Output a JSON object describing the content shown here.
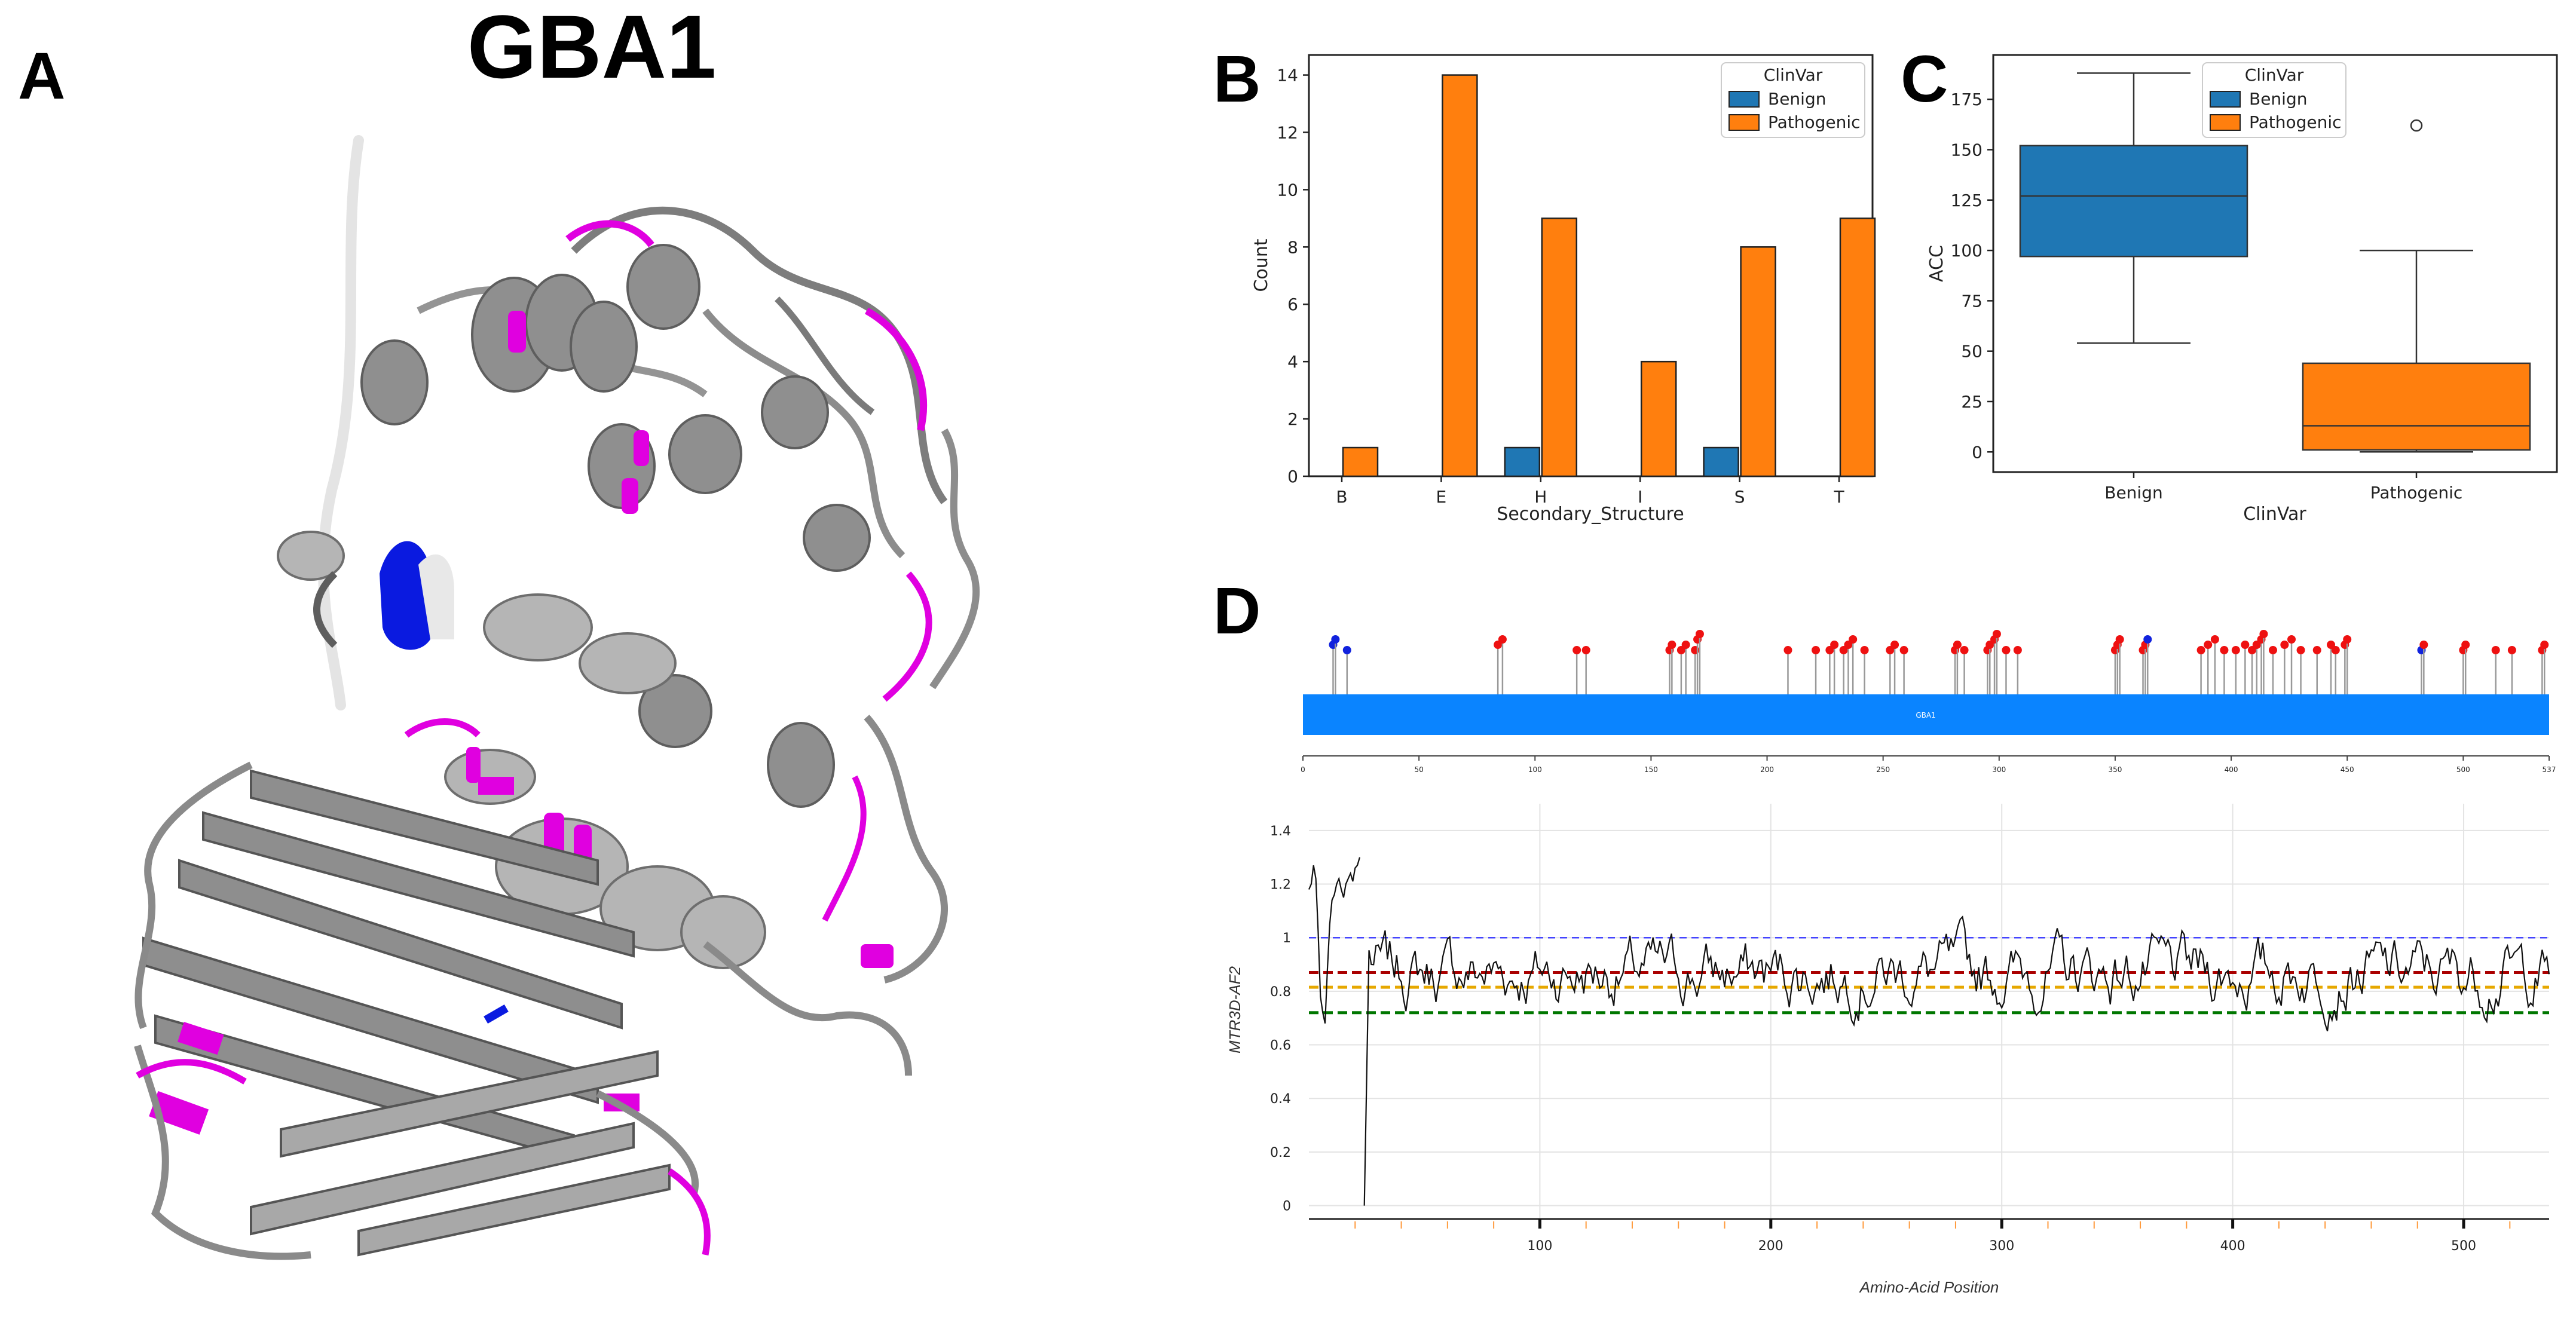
{
  "figure": {
    "panel_labels": {
      "a": "A",
      "b": "B",
      "c": "C",
      "d": "D"
    },
    "structure_title": "GBA1"
  },
  "colors": {
    "benign": "#1f77b4",
    "pathogenic": "#ff7f0e",
    "structure_gray": "#8a8a8a",
    "structure_highlight": "#e000e0",
    "structure_blue": "#0a1ae0",
    "lollipop_pathogenic": "#ee1111",
    "lollipop_benign": "#1122dd",
    "domain_bar": "#0a84ff",
    "ref_blue": "#4444ff",
    "ref_red": "#aa0000",
    "ref_yellow": "#e6a800",
    "ref_green": "#007700"
  },
  "chart_data": [
    {
      "id": "B",
      "type": "bar",
      "title": "",
      "xlabel": "Secondary_Structure",
      "ylabel": "Count",
      "categories": [
        "B",
        "E",
        "H",
        "I",
        "S",
        "T"
      ],
      "series": [
        {
          "name": "Benign",
          "values": [
            0,
            0,
            1,
            0,
            1,
            0
          ]
        },
        {
          "name": "Pathogenic",
          "values": [
            1,
            14,
            9,
            4,
            8,
            9
          ]
        }
      ],
      "ylim": [
        0,
        14.7
      ],
      "yticks": [
        "0",
        "2",
        "4",
        "6",
        "8",
        "10",
        "12",
        "14"
      ],
      "yticks_values": [
        0,
        2,
        4,
        6,
        8,
        10,
        12,
        14
      ],
      "legend": {
        "title": "ClinVar",
        "entries": [
          "Benign",
          "Pathogenic"
        ],
        "position": "top-right"
      }
    },
    {
      "id": "C",
      "type": "box",
      "title": "",
      "xlabel": "ClinVar",
      "ylabel": "ACC",
      "categories": [
        "Benign",
        "Pathogenic"
      ],
      "boxes": [
        {
          "name": "Benign",
          "whisker_low": 54,
          "q1": 97,
          "median": 127,
          "q3": 152,
          "whisker_high": 188,
          "outliers": []
        },
        {
          "name": "Pathogenic",
          "whisker_low": 0,
          "q1": 1,
          "median": 13,
          "q3": 44,
          "whisker_high": 100,
          "outliers": [
            162
          ]
        }
      ],
      "ylim": [
        -10,
        197
      ],
      "yticks": [
        "0",
        "25",
        "50",
        "75",
        "100",
        "125",
        "150",
        "175"
      ],
      "yticks_values": [
        0,
        25,
        50,
        75,
        100,
        125,
        150,
        175
      ],
      "legend": {
        "title": "ClinVar",
        "entries": [
          "Benign",
          "Pathogenic"
        ],
        "position": "top-right"
      }
    },
    {
      "id": "D-lollipop",
      "type": "lollipop",
      "protein_length": 537,
      "domain_label": "GBA1",
      "ticks": [
        "0",
        "50",
        "100",
        "150",
        "200",
        "250",
        "300",
        "350",
        "400",
        "450",
        "500",
        "537"
      ],
      "tick_values": [
        0,
        50,
        100,
        150,
        200,
        250,
        300,
        350,
        400,
        450,
        500,
        537
      ],
      "variants": [
        {
          "pos": 13,
          "n": 2,
          "class": "Benign"
        },
        {
          "pos": 14,
          "n": 3,
          "class": "Benign"
        },
        {
          "pos": 19,
          "n": 1,
          "class": "Benign"
        },
        {
          "pos": 84,
          "n": 2,
          "class": "Pathogenic"
        },
        {
          "pos": 86,
          "n": 3,
          "class": "Pathogenic"
        },
        {
          "pos": 118,
          "n": 1,
          "class": "Pathogenic"
        },
        {
          "pos": 122,
          "n": 1,
          "class": "Pathogenic"
        },
        {
          "pos": 158,
          "n": 1,
          "class": "Pathogenic"
        },
        {
          "pos": 159,
          "n": 2,
          "class": "Pathogenic"
        },
        {
          "pos": 163,
          "n": 1,
          "class": "Pathogenic"
        },
        {
          "pos": 165,
          "n": 2,
          "class": "Pathogenic"
        },
        {
          "pos": 169,
          "n": 1,
          "class": "Pathogenic"
        },
        {
          "pos": 170,
          "n": 3,
          "class": "Pathogenic"
        },
        {
          "pos": 171,
          "n": 4,
          "class": "Pathogenic"
        },
        {
          "pos": 209,
          "n": 1,
          "class": "Pathogenic"
        },
        {
          "pos": 221,
          "n": 1,
          "class": "Pathogenic"
        },
        {
          "pos": 227,
          "n": 1,
          "class": "Pathogenic"
        },
        {
          "pos": 229,
          "n": 2,
          "class": "Pathogenic"
        },
        {
          "pos": 233,
          "n": 1,
          "class": "Pathogenic"
        },
        {
          "pos": 235,
          "n": 2,
          "class": "Pathogenic"
        },
        {
          "pos": 237,
          "n": 3,
          "class": "Pathogenic"
        },
        {
          "pos": 242,
          "n": 1,
          "class": "Pathogenic"
        },
        {
          "pos": 253,
          "n": 1,
          "class": "Pathogenic"
        },
        {
          "pos": 255,
          "n": 2,
          "class": "Pathogenic"
        },
        {
          "pos": 259,
          "n": 1,
          "class": "Pathogenic"
        },
        {
          "pos": 281,
          "n": 1,
          "class": "Pathogenic"
        },
        {
          "pos": 282,
          "n": 2,
          "class": "Pathogenic"
        },
        {
          "pos": 285,
          "n": 1,
          "class": "Pathogenic"
        },
        {
          "pos": 295,
          "n": 1,
          "class": "Pathogenic"
        },
        {
          "pos": 296,
          "n": 2,
          "class": "Pathogenic"
        },
        {
          "pos": 298,
          "n": 3,
          "class": "Pathogenic"
        },
        {
          "pos": 299,
          "n": 4,
          "class": "Pathogenic"
        },
        {
          "pos": 303,
          "n": 1,
          "class": "Pathogenic"
        },
        {
          "pos": 308,
          "n": 1,
          "class": "Pathogenic"
        },
        {
          "pos": 350,
          "n": 1,
          "class": "Pathogenic"
        },
        {
          "pos": 351,
          "n": 2,
          "class": "Pathogenic"
        },
        {
          "pos": 352,
          "n": 3,
          "class": "Pathogenic"
        },
        {
          "pos": 362,
          "n": 1,
          "class": "Pathogenic"
        },
        {
          "pos": 363,
          "n": 2,
          "class": "Pathogenic"
        },
        {
          "pos": 364,
          "n": 3,
          "class": "Benign"
        },
        {
          "pos": 387,
          "n": 1,
          "class": "Pathogenic"
        },
        {
          "pos": 390,
          "n": 2,
          "class": "Pathogenic"
        },
        {
          "pos": 393,
          "n": 3,
          "class": "Pathogenic"
        },
        {
          "pos": 397,
          "n": 1,
          "class": "Pathogenic"
        },
        {
          "pos": 402,
          "n": 1,
          "class": "Pathogenic"
        },
        {
          "pos": 406,
          "n": 2,
          "class": "Pathogenic"
        },
        {
          "pos": 409,
          "n": 1,
          "class": "Pathogenic"
        },
        {
          "pos": 411,
          "n": 2,
          "class": "Pathogenic"
        },
        {
          "pos": 413,
          "n": 3,
          "class": "Pathogenic"
        },
        {
          "pos": 414,
          "n": 4,
          "class": "Pathogenic"
        },
        {
          "pos": 418,
          "n": 1,
          "class": "Pathogenic"
        },
        {
          "pos": 423,
          "n": 2,
          "class": "Pathogenic"
        },
        {
          "pos": 426,
          "n": 3,
          "class": "Pathogenic"
        },
        {
          "pos": 430,
          "n": 1,
          "class": "Pathogenic"
        },
        {
          "pos": 437,
          "n": 1,
          "class": "Pathogenic"
        },
        {
          "pos": 443,
          "n": 2,
          "class": "Pathogenic"
        },
        {
          "pos": 445,
          "n": 1,
          "class": "Pathogenic"
        },
        {
          "pos": 449,
          "n": 2,
          "class": "Pathogenic"
        },
        {
          "pos": 450,
          "n": 3,
          "class": "Pathogenic"
        },
        {
          "pos": 482,
          "n": 1,
          "class": "Benign"
        },
        {
          "pos": 483,
          "n": 2,
          "class": "Pathogenic"
        },
        {
          "pos": 500,
          "n": 1,
          "class": "Pathogenic"
        },
        {
          "pos": 501,
          "n": 2,
          "class": "Pathogenic"
        },
        {
          "pos": 514,
          "n": 1,
          "class": "Pathogenic"
        },
        {
          "pos": 521,
          "n": 1,
          "class": "Pathogenic"
        },
        {
          "pos": 534,
          "n": 1,
          "class": "Pathogenic"
        },
        {
          "pos": 535,
          "n": 2,
          "class": "Pathogenic"
        }
      ]
    },
    {
      "id": "D-line",
      "type": "line",
      "title": "",
      "xlabel": "Amino-Acid Position",
      "ylabel": "MTR3D-AF2",
      "xlim": [
        0,
        537
      ],
      "ylim": [
        -0.05,
        1.5
      ],
      "xticks": [
        "100",
        "200",
        "300",
        "400",
        "500"
      ],
      "xticks_values": [
        100,
        200,
        300,
        400,
        500
      ],
      "yticks": [
        "0",
        "0.2",
        "0.4",
        "0.6",
        "0.8",
        "1",
        "1.2",
        "1.4"
      ],
      "yticks_values": [
        0,
        0.2,
        0.4,
        0.6,
        0.8,
        1.0,
        1.2,
        1.4
      ],
      "reference_lines": [
        {
          "name": "neutral",
          "value": 1.0,
          "color": "#4444ff"
        },
        {
          "name": "red",
          "value": 0.87,
          "color": "#aa0000"
        },
        {
          "name": "yellow",
          "value": 0.815,
          "color": "#e6a800"
        },
        {
          "name": "green",
          "value": 0.72,
          "color": "#007700"
        }
      ],
      "segment1": {
        "x": [
          0,
          1,
          2,
          3,
          4,
          5,
          6,
          7,
          8,
          9,
          10,
          11,
          12,
          13,
          14,
          15,
          16,
          17,
          18,
          19,
          20,
          21,
          22
        ],
        "y": [
          1.18,
          1.2,
          1.27,
          1.22,
          1.02,
          0.78,
          0.72,
          0.68,
          0.88,
          1.05,
          1.14,
          1.16,
          1.2,
          1.22,
          1.18,
          1.15,
          1.2,
          1.22,
          1.24,
          1.21,
          1.26,
          1.27,
          1.3
        ]
      },
      "segment2_seed": 7,
      "segment2_start": 24,
      "segment2_end": 537,
      "segment2_start_y": 0.0,
      "segment2_mean": 0.87,
      "minor_tick_spacing": 20
    }
  ]
}
